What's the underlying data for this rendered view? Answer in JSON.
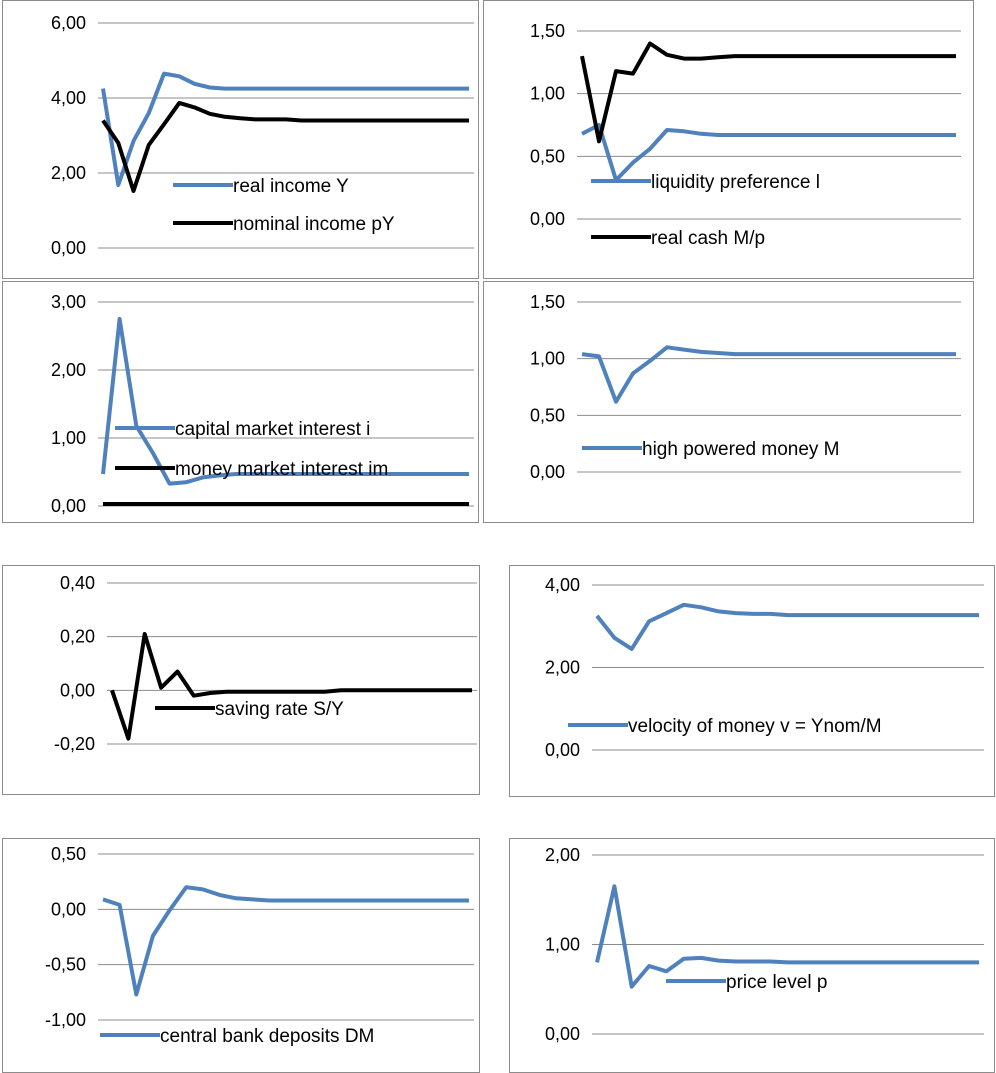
{
  "chart_data": [
    {
      "type": "line",
      "ylim": [
        0,
        6
      ],
      "yticks": [
        "0,00",
        "2,00",
        "4,00",
        "6,00"
      ],
      "yvalues": [
        0,
        2,
        4,
        6
      ],
      "legend_placement": "inside-lower",
      "series": [
        {
          "name": "real income Y",
          "color": "#4f81bd",
          "values": [
            4.25,
            1.68,
            2.85,
            3.6,
            4.65,
            4.58,
            4.38,
            4.28,
            4.25,
            4.25,
            4.25,
            4.25,
            4.25,
            4.25,
            4.25,
            4.25,
            4.25,
            4.25,
            4.25,
            4.25,
            4.25,
            4.25,
            4.25,
            4.25,
            4.25
          ]
        },
        {
          "name": "nominal income pY",
          "color": "#000000",
          "values": [
            3.4,
            2.8,
            1.52,
            2.75,
            3.3,
            3.87,
            3.75,
            3.58,
            3.5,
            3.46,
            3.43,
            3.43,
            3.43,
            3.4,
            3.4,
            3.4,
            3.4,
            3.4,
            3.4,
            3.4,
            3.4,
            3.4,
            3.4,
            3.4,
            3.4
          ]
        }
      ]
    },
    {
      "type": "line",
      "ylim": [
        0,
        1.5
      ],
      "yticks": [
        "0,00",
        "0,50",
        "1,00",
        "1,50"
      ],
      "yvalues": [
        0,
        0.5,
        1.0,
        1.5
      ],
      "legend_placement": "inside-lower",
      "series": [
        {
          "name": "liquidity preference l",
          "color": "#4f81bd",
          "values": [
            0.68,
            0.75,
            0.31,
            0.45,
            0.56,
            0.71,
            0.7,
            0.68,
            0.67,
            0.67,
            0.67,
            0.67,
            0.67,
            0.67,
            0.67,
            0.67,
            0.67,
            0.67,
            0.67,
            0.67,
            0.67,
            0.67,
            0.67
          ]
        },
        {
          "name": "real cash M/p",
          "color": "#000000",
          "values": [
            1.3,
            0.62,
            1.18,
            1.16,
            1.4,
            1.31,
            1.28,
            1.28,
            1.29,
            1.3,
            1.3,
            1.3,
            1.3,
            1.3,
            1.3,
            1.3,
            1.3,
            1.3,
            1.3,
            1.3,
            1.3,
            1.3,
            1.3
          ]
        }
      ]
    },
    {
      "type": "line",
      "ylim": [
        0,
        3
      ],
      "yticks": [
        "0,00",
        "1,00",
        "2,00",
        "3,00"
      ],
      "yvalues": [
        0,
        1,
        2,
        3
      ],
      "legend_placement": "inside-lower",
      "series": [
        {
          "name": "capital market interest  i",
          "color": "#4f81bd",
          "values": [
            0.47,
            2.75,
            1.18,
            0.78,
            0.33,
            0.35,
            0.42,
            0.45,
            0.47,
            0.47,
            0.47,
            0.47,
            0.47,
            0.47,
            0.47,
            0.47,
            0.47,
            0.47,
            0.47,
            0.47,
            0.47,
            0.47,
            0.47
          ]
        },
        {
          "name": "money market interest  im",
          "color": "#000000",
          "values": [
            0.03,
            0.03,
            0.03,
            0.03,
            0.03,
            0.03,
            0.03,
            0.03,
            0.03,
            0.03,
            0.03,
            0.03,
            0.03,
            0.03,
            0.03,
            0.03,
            0.03,
            0.03,
            0.03,
            0.03,
            0.03,
            0.03,
            0.03
          ]
        }
      ]
    },
    {
      "type": "line",
      "ylim": [
        0,
        1.5
      ],
      "yticks": [
        "0,00",
        "0,50",
        "1,00",
        "1,50"
      ],
      "yvalues": [
        0,
        0.5,
        1.0,
        1.5
      ],
      "legend_placement": "inside-lower",
      "series": [
        {
          "name": "high powered  money M",
          "color": "#4f81bd",
          "values": [
            1.04,
            1.02,
            0.62,
            0.87,
            0.98,
            1.1,
            1.08,
            1.06,
            1.05,
            1.04,
            1.04,
            1.04,
            1.04,
            1.04,
            1.04,
            1.04,
            1.04,
            1.04,
            1.04,
            1.04,
            1.04,
            1.04,
            1.04
          ]
        }
      ]
    },
    {
      "type": "line",
      "ylim": [
        -0.2,
        0.4
      ],
      "yticks": [
        "-0,20",
        "0,00",
        "0,20",
        "0,40"
      ],
      "yvalues": [
        -0.2,
        0,
        0.2,
        0.4
      ],
      "legend_placement": "inside-lower",
      "series": [
        {
          "name": "saving rate S/Y",
          "color": "#000000",
          "values": [
            0.0,
            -0.18,
            0.21,
            0.01,
            0.07,
            -0.02,
            -0.01,
            -0.005,
            -0.005,
            -0.005,
            -0.005,
            -0.005,
            -0.005,
            -0.005,
            0.0,
            0.0,
            0.0,
            0.0,
            0.0,
            0.0,
            0.0,
            0.0,
            0.0
          ]
        }
      ]
    },
    {
      "type": "line",
      "ylim": [
        0,
        4
      ],
      "yticks": [
        "0,00",
        "2,00",
        "4,00"
      ],
      "yvalues": [
        0,
        2,
        4
      ],
      "legend_placement": "inside-lower",
      "series": [
        {
          "name": "velocity of money v = Ynom/M",
          "color": "#4f81bd",
          "values": [
            3.25,
            2.72,
            2.45,
            3.12,
            3.32,
            3.52,
            3.46,
            3.36,
            3.32,
            3.3,
            3.3,
            3.27,
            3.27,
            3.27,
            3.27,
            3.27,
            3.27,
            3.27,
            3.27,
            3.27,
            3.27,
            3.27,
            3.27
          ]
        }
      ]
    },
    {
      "type": "line",
      "ylim": [
        -1,
        0.5
      ],
      "yticks": [
        "-1,00",
        "-0,50",
        "0,00",
        "0,50"
      ],
      "yvalues": [
        -1,
        -0.5,
        0,
        0.5
      ],
      "legend_placement": "inside-lower",
      "series": [
        {
          "name": "central bank deposits DM",
          "color": "#4f81bd",
          "values": [
            0.09,
            0.04,
            -0.77,
            -0.24,
            -0.01,
            0.2,
            0.18,
            0.13,
            0.1,
            0.09,
            0.08,
            0.08,
            0.08,
            0.08,
            0.08,
            0.08,
            0.08,
            0.08,
            0.08,
            0.08,
            0.08,
            0.08,
            0.08
          ]
        }
      ]
    },
    {
      "type": "line",
      "ylim": [
        0,
        2
      ],
      "yticks": [
        "0,00",
        "1,00",
        "2,00"
      ],
      "yvalues": [
        0,
        1,
        2
      ],
      "legend_placement": "inside-lower",
      "series": [
        {
          "name": "price level p",
          "color": "#4f81bd",
          "values": [
            0.8,
            1.65,
            0.53,
            0.76,
            0.7,
            0.84,
            0.85,
            0.82,
            0.81,
            0.81,
            0.81,
            0.8,
            0.8,
            0.8,
            0.8,
            0.8,
            0.8,
            0.8,
            0.8,
            0.8,
            0.8,
            0.8,
            0.8
          ]
        }
      ]
    }
  ]
}
